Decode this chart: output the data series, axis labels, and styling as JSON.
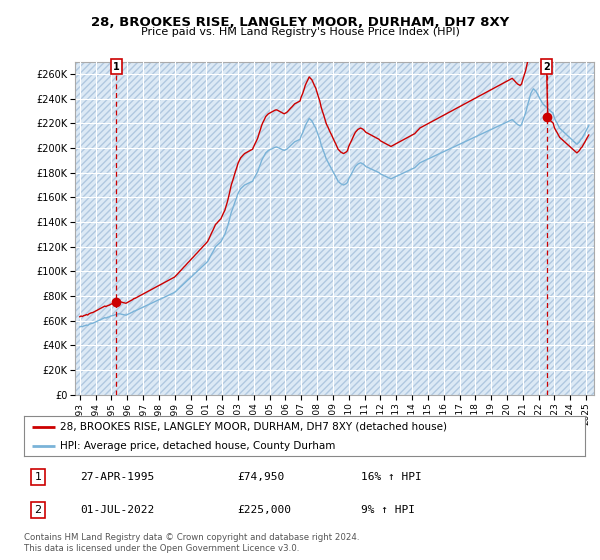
{
  "title": "28, BROOKES RISE, LANGLEY MOOR, DURHAM, DH7 8XY",
  "subtitle": "Price paid vs. HM Land Registry's House Price Index (HPI)",
  "ylim": [
    0,
    270000
  ],
  "yticks": [
    0,
    20000,
    40000,
    60000,
    80000,
    100000,
    120000,
    140000,
    160000,
    180000,
    200000,
    220000,
    240000,
    260000
  ],
  "ytick_labels": [
    "£0",
    "£20K",
    "£40K",
    "£60K",
    "£80K",
    "£100K",
    "£120K",
    "£140K",
    "£160K",
    "£180K",
    "£200K",
    "£220K",
    "£240K",
    "£260K"
  ],
  "xlim_start": 1992.7,
  "xlim_end": 2025.5,
  "background_color": "#ffffff",
  "plot_bg_color": "#dce9f5",
  "grid_color": "#ffffff",
  "hpi_color": "#7ab3d8",
  "price_color": "#cc0000",
  "dashed_line_color": "#cc0000",
  "marker1_x": 1995.32,
  "marker1_y": 74950,
  "marker1_label": "1",
  "marker2_x": 2022.5,
  "marker2_y": 225000,
  "marker2_label": "2",
  "legend_line1": "28, BROOKES RISE, LANGLEY MOOR, DURHAM, DH7 8XY (detached house)",
  "legend_line2": "HPI: Average price, detached house, County Durham",
  "table_row1": [
    "1",
    "27-APR-1995",
    "£74,950",
    "16% ↑ HPI"
  ],
  "table_row2": [
    "2",
    "01-JUL-2022",
    "£225,000",
    "9% ↑ HPI"
  ],
  "footnote": "Contains HM Land Registry data © Crown copyright and database right 2024.\nThis data is licensed under the Open Government Licence v3.0.",
  "hpi_monthly": {
    "years": [
      1993.0,
      1993.08,
      1993.17,
      1993.25,
      1993.33,
      1993.42,
      1993.5,
      1993.58,
      1993.67,
      1993.75,
      1993.83,
      1993.92,
      1994.0,
      1994.08,
      1994.17,
      1994.25,
      1994.33,
      1994.42,
      1994.5,
      1994.58,
      1994.67,
      1994.75,
      1994.83,
      1994.92,
      1995.0,
      1995.08,
      1995.17,
      1995.25,
      1995.33,
      1995.42,
      1995.5,
      1995.58,
      1995.67,
      1995.75,
      1995.83,
      1995.92,
      1996.0,
      1996.08,
      1996.17,
      1996.25,
      1996.33,
      1996.42,
      1996.5,
      1996.58,
      1996.67,
      1996.75,
      1996.83,
      1996.92,
      1997.0,
      1997.08,
      1997.17,
      1997.25,
      1997.33,
      1997.42,
      1997.5,
      1997.58,
      1997.67,
      1997.75,
      1997.83,
      1997.92,
      1998.0,
      1998.08,
      1998.17,
      1998.25,
      1998.33,
      1998.42,
      1998.5,
      1998.58,
      1998.67,
      1998.75,
      1998.83,
      1998.92,
      1999.0,
      1999.08,
      1999.17,
      1999.25,
      1999.33,
      1999.42,
      1999.5,
      1999.58,
      1999.67,
      1999.75,
      1999.83,
      1999.92,
      2000.0,
      2000.08,
      2000.17,
      2000.25,
      2000.33,
      2000.42,
      2000.5,
      2000.58,
      2000.67,
      2000.75,
      2000.83,
      2000.92,
      2001.0,
      2001.08,
      2001.17,
      2001.25,
      2001.33,
      2001.42,
      2001.5,
      2001.58,
      2001.67,
      2001.75,
      2001.83,
      2001.92,
      2002.0,
      2002.08,
      2002.17,
      2002.25,
      2002.33,
      2002.42,
      2002.5,
      2002.58,
      2002.67,
      2002.75,
      2002.83,
      2002.92,
      2003.0,
      2003.08,
      2003.17,
      2003.25,
      2003.33,
      2003.42,
      2003.5,
      2003.58,
      2003.67,
      2003.75,
      2003.83,
      2003.92,
      2004.0,
      2004.08,
      2004.17,
      2004.25,
      2004.33,
      2004.42,
      2004.5,
      2004.58,
      2004.67,
      2004.75,
      2004.83,
      2004.92,
      2005.0,
      2005.08,
      2005.17,
      2005.25,
      2005.33,
      2005.42,
      2005.5,
      2005.58,
      2005.67,
      2005.75,
      2005.83,
      2005.92,
      2006.0,
      2006.08,
      2006.17,
      2006.25,
      2006.33,
      2006.42,
      2006.5,
      2006.58,
      2006.67,
      2006.75,
      2006.83,
      2006.92,
      2007.0,
      2007.08,
      2007.17,
      2007.25,
      2007.33,
      2007.42,
      2007.5,
      2007.58,
      2007.67,
      2007.75,
      2007.83,
      2007.92,
      2008.0,
      2008.08,
      2008.17,
      2008.25,
      2008.33,
      2008.42,
      2008.5,
      2008.58,
      2008.67,
      2008.75,
      2008.83,
      2008.92,
      2009.0,
      2009.08,
      2009.17,
      2009.25,
      2009.33,
      2009.42,
      2009.5,
      2009.58,
      2009.67,
      2009.75,
      2009.83,
      2009.92,
      2010.0,
      2010.08,
      2010.17,
      2010.25,
      2010.33,
      2010.42,
      2010.5,
      2010.58,
      2010.67,
      2010.75,
      2010.83,
      2010.92,
      2011.0,
      2011.08,
      2011.17,
      2011.25,
      2011.33,
      2011.42,
      2011.5,
      2011.58,
      2011.67,
      2011.75,
      2011.83,
      2011.92,
      2012.0,
      2012.08,
      2012.17,
      2012.25,
      2012.33,
      2012.42,
      2012.5,
      2012.58,
      2012.67,
      2012.75,
      2012.83,
      2012.92,
      2013.0,
      2013.08,
      2013.17,
      2013.25,
      2013.33,
      2013.42,
      2013.5,
      2013.58,
      2013.67,
      2013.75,
      2013.83,
      2013.92,
      2014.0,
      2014.08,
      2014.17,
      2014.25,
      2014.33,
      2014.42,
      2014.5,
      2014.58,
      2014.67,
      2014.75,
      2014.83,
      2014.92,
      2015.0,
      2015.08,
      2015.17,
      2015.25,
      2015.33,
      2015.42,
      2015.5,
      2015.58,
      2015.67,
      2015.75,
      2015.83,
      2015.92,
      2016.0,
      2016.08,
      2016.17,
      2016.25,
      2016.33,
      2016.42,
      2016.5,
      2016.58,
      2016.67,
      2016.75,
      2016.83,
      2016.92,
      2017.0,
      2017.08,
      2017.17,
      2017.25,
      2017.33,
      2017.42,
      2017.5,
      2017.58,
      2017.67,
      2017.75,
      2017.83,
      2017.92,
      2018.0,
      2018.08,
      2018.17,
      2018.25,
      2018.33,
      2018.42,
      2018.5,
      2018.58,
      2018.67,
      2018.75,
      2018.83,
      2018.92,
      2019.0,
      2019.08,
      2019.17,
      2019.25,
      2019.33,
      2019.42,
      2019.5,
      2019.58,
      2019.67,
      2019.75,
      2019.83,
      2019.92,
      2020.0,
      2020.08,
      2020.17,
      2020.25,
      2020.33,
      2020.42,
      2020.5,
      2020.58,
      2020.67,
      2020.75,
      2020.83,
      2020.92,
      2021.0,
      2021.08,
      2021.17,
      2021.25,
      2021.33,
      2021.42,
      2021.5,
      2021.58,
      2021.67,
      2021.75,
      2021.83,
      2021.92,
      2022.0,
      2022.08,
      2022.17,
      2022.25,
      2022.33,
      2022.42,
      2022.5,
      2022.58,
      2022.67,
      2022.75,
      2022.83,
      2022.92,
      2023.0,
      2023.08,
      2023.17,
      2023.25,
      2023.33,
      2023.42,
      2023.5,
      2023.58,
      2023.67,
      2023.75,
      2023.83,
      2023.92,
      2024.0,
      2024.08,
      2024.17,
      2024.25,
      2024.33,
      2024.42,
      2024.5,
      2024.58,
      2024.67,
      2024.75,
      2024.83,
      2024.92,
      2025.0,
      2025.08,
      2025.17
    ],
    "values": [
      55000,
      55500,
      55200,
      55800,
      56000,
      56500,
      56200,
      57000,
      57500,
      57800,
      58000,
      58500,
      59000,
      59500,
      60000,
      60500,
      61000,
      61500,
      62000,
      62500,
      62200,
      62800,
      63000,
      63500,
      64000,
      64200,
      64500,
      65000,
      65200,
      65500,
      65800,
      65500,
      65200,
      65000,
      64800,
      64500,
      65000,
      65500,
      66000,
      66500,
      67000,
      67800,
      68000,
      68500,
      69000,
      69500,
      70000,
      70500,
      71000,
      71500,
      72000,
      72500,
      73000,
      73500,
      74000,
      74500,
      75000,
      75500,
      76000,
      76500,
      77000,
      77500,
      78000,
      78500,
      79000,
      79500,
      80000,
      80500,
      81000,
      81500,
      82000,
      82500,
      83000,
      84000,
      85000,
      86000,
      87000,
      88000,
      89000,
      90000,
      91000,
      92000,
      93000,
      94000,
      95000,
      96000,
      97000,
      98000,
      99000,
      100000,
      101000,
      102000,
      103000,
      104000,
      105000,
      106000,
      107000,
      108000,
      110000,
      112000,
      114000,
      116000,
      118000,
      120000,
      121000,
      122000,
      123000,
      124000,
      126000,
      128000,
      130000,
      133000,
      136000,
      140000,
      144000,
      148000,
      151000,
      154000,
      157000,
      160000,
      163000,
      165000,
      167000,
      168000,
      169000,
      170000,
      170500,
      171000,
      171500,
      172000,
      172500,
      173000,
      175000,
      177000,
      179000,
      181000,
      184000,
      187000,
      190000,
      192000,
      194000,
      196000,
      197000,
      198000,
      198500,
      199000,
      199500,
      200000,
      200500,
      200800,
      200500,
      200000,
      199500,
      199000,
      198500,
      198000,
      198500,
      199000,
      200000,
      201000,
      202000,
      203000,
      204000,
      205000,
      205500,
      206000,
      206500,
      207000,
      210000,
      212000,
      215000,
      218000,
      220000,
      222000,
      224000,
      223000,
      222000,
      220000,
      218000,
      216000,
      213000,
      210000,
      207000,
      203000,
      200000,
      197000,
      194000,
      191000,
      189000,
      187000,
      185000,
      183000,
      181000,
      179000,
      177000,
      175000,
      173000,
      172000,
      171000,
      170500,
      170000,
      170500,
      171000,
      172000,
      175000,
      177000,
      179000,
      181000,
      183000,
      185000,
      186000,
      187000,
      187500,
      188000,
      187500,
      187000,
      186000,
      185000,
      184500,
      184000,
      183500,
      183000,
      182500,
      182000,
      181500,
      181000,
      180500,
      180000,
      179000,
      178500,
      178000,
      177500,
      177000,
      176500,
      176000,
      175500,
      175000,
      175500,
      176000,
      176500,
      177000,
      177500,
      178000,
      178500,
      179000,
      179500,
      180000,
      180500,
      181000,
      181500,
      182000,
      182500,
      183000,
      183500,
      184000,
      185000,
      186000,
      187000,
      188000,
      188500,
      189000,
      189500,
      190000,
      190500,
      191000,
      191500,
      192000,
      192500,
      193000,
      193500,
      194000,
      194500,
      195000,
      195500,
      196000,
      196500,
      197000,
      197500,
      198000,
      198500,
      199000,
      199500,
      200000,
      200500,
      201000,
      201500,
      202000,
      202500,
      203000,
      203500,
      204000,
      204500,
      205000,
      205500,
      206000,
      206500,
      207000,
      207500,
      208000,
      208500,
      209000,
      209500,
      210000,
      210500,
      211000,
      211500,
      212000,
      212500,
      213000,
      213500,
      214000,
      214500,
      215000,
      215500,
      216000,
      216500,
      217000,
      217500,
      218000,
      218500,
      219000,
      219500,
      220000,
      220500,
      221000,
      221500,
      222000,
      222500,
      223000,
      222000,
      221000,
      220000,
      219000,
      218500,
      218000,
      219000,
      222000,
      225000,
      228000,
      232000,
      236000,
      240000,
      244000,
      246000,
      248000,
      247000,
      246000,
      244000,
      242000,
      240000,
      238000,
      236000,
      235000,
      234000,
      233000,
      232000,
      231000,
      230000,
      229000,
      228000,
      224000,
      222000,
      220000,
      218000,
      216000,
      215000,
      214000,
      213000,
      212000,
      211000,
      210000,
      209000,
      208000,
      207000,
      206000,
      205000,
      204000,
      203000,
      204000,
      205000,
      207000,
      208000,
      210000,
      212000,
      214000,
      216000,
      218000
    ]
  }
}
